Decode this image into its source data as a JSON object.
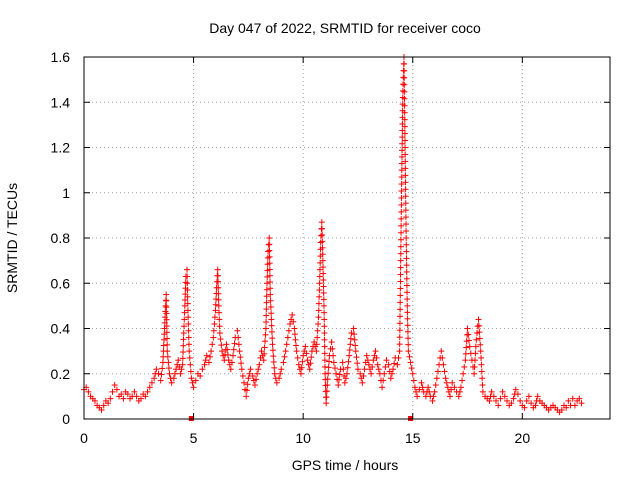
{
  "chart_data": {
    "type": "scatter",
    "title": "Day 047 of 2022, SRMTID for receiver coco",
    "xlabel": "GPS time / hours",
    "ylabel": "SRMTID / TECUs",
    "xlim": [
      0,
      24
    ],
    "ylim": [
      0,
      1.6
    ],
    "x_ticks": [
      0,
      5,
      10,
      15,
      20
    ],
    "x_tick_labels": [
      "0",
      "5",
      "10",
      "15",
      "20"
    ],
    "y_ticks": [
      0,
      0.2,
      0.4,
      0.6,
      0.8,
      1,
      1.2,
      1.4,
      1.6
    ],
    "y_tick_labels": [
      "0",
      "0.2",
      "0.4",
      "0.6",
      "0.8",
      "1",
      "1.2",
      "1.4",
      "1.6"
    ],
    "grid": true,
    "marker": "plus",
    "color": "#ff0000",
    "baseline_markers": [
      4.9,
      14.9
    ],
    "series": [
      {
        "name": "SRMTID",
        "points": [
          [
            0.0,
            0.13
          ],
          [
            0.1,
            0.14
          ],
          [
            0.2,
            0.12
          ],
          [
            0.3,
            0.1
          ],
          [
            0.4,
            0.09
          ],
          [
            0.5,
            0.08
          ],
          [
            0.6,
            0.06
          ],
          [
            0.7,
            0.05
          ],
          [
            0.8,
            0.04
          ],
          [
            0.9,
            0.06
          ],
          [
            1.0,
            0.08
          ],
          [
            1.1,
            0.07
          ],
          [
            1.2,
            0.09
          ],
          [
            1.3,
            0.12
          ],
          [
            1.4,
            0.15
          ],
          [
            1.5,
            0.13
          ],
          [
            1.6,
            0.1
          ],
          [
            1.7,
            0.11
          ],
          [
            1.8,
            0.09
          ],
          [
            1.9,
            0.12
          ],
          [
            2.0,
            0.11
          ],
          [
            2.1,
            0.09
          ],
          [
            2.2,
            0.1
          ],
          [
            2.3,
            0.12
          ],
          [
            2.4,
            0.1
          ],
          [
            2.5,
            0.08
          ],
          [
            2.6,
            0.09
          ],
          [
            2.7,
            0.11
          ],
          [
            2.8,
            0.1
          ],
          [
            2.9,
            0.12
          ],
          [
            3.0,
            0.14
          ],
          [
            3.1,
            0.16
          ],
          [
            3.2,
            0.18
          ],
          [
            3.3,
            0.22
          ],
          [
            3.4,
            0.2
          ],
          [
            3.5,
            0.17
          ],
          [
            3.6,
            0.25
          ],
          [
            3.65,
            0.35
          ],
          [
            3.7,
            0.45
          ],
          [
            3.75,
            0.55
          ],
          [
            3.8,
            0.3
          ],
          [
            3.9,
            0.2
          ],
          [
            4.0,
            0.16
          ],
          [
            4.1,
            0.18
          ],
          [
            4.2,
            0.22
          ],
          [
            4.3,
            0.26
          ],
          [
            4.4,
            0.2
          ],
          [
            4.5,
            0.24
          ],
          [
            4.55,
            0.38
          ],
          [
            4.6,
            0.5
          ],
          [
            4.65,
            0.63
          ],
          [
            4.7,
            0.66
          ],
          [
            4.75,
            0.45
          ],
          [
            4.8,
            0.3
          ],
          [
            4.9,
            0.18
          ],
          [
            5.0,
            0.14
          ],
          [
            5.1,
            0.17
          ],
          [
            5.2,
            0.2
          ],
          [
            5.3,
            0.19
          ],
          [
            5.4,
            0.22
          ],
          [
            5.5,
            0.24
          ],
          [
            5.6,
            0.28
          ],
          [
            5.7,
            0.25
          ],
          [
            5.8,
            0.3
          ],
          [
            5.9,
            0.36
          ],
          [
            6.0,
            0.48
          ],
          [
            6.05,
            0.58
          ],
          [
            6.1,
            0.66
          ],
          [
            6.15,
            0.5
          ],
          [
            6.2,
            0.38
          ],
          [
            6.3,
            0.3
          ],
          [
            6.4,
            0.26
          ],
          [
            6.5,
            0.33
          ],
          [
            6.6,
            0.26
          ],
          [
            6.7,
            0.22
          ],
          [
            6.8,
            0.28
          ],
          [
            6.9,
            0.36
          ],
          [
            7.0,
            0.39
          ],
          [
            7.1,
            0.3
          ],
          [
            7.2,
            0.22
          ],
          [
            7.3,
            0.16
          ],
          [
            7.4,
            0.1
          ],
          [
            7.5,
            0.18
          ],
          [
            7.6,
            0.22
          ],
          [
            7.7,
            0.19
          ],
          [
            7.8,
            0.15
          ],
          [
            7.9,
            0.2
          ],
          [
            8.0,
            0.24
          ],
          [
            8.1,
            0.3
          ],
          [
            8.2,
            0.26
          ],
          [
            8.3,
            0.4
          ],
          [
            8.35,
            0.6
          ],
          [
            8.4,
            0.74
          ],
          [
            8.45,
            0.8
          ],
          [
            8.5,
            0.55
          ],
          [
            8.6,
            0.33
          ],
          [
            8.7,
            0.2
          ],
          [
            8.8,
            0.16
          ],
          [
            8.9,
            0.18
          ],
          [
            9.0,
            0.22
          ],
          [
            9.1,
            0.25
          ],
          [
            9.2,
            0.3
          ],
          [
            9.3,
            0.36
          ],
          [
            9.4,
            0.42
          ],
          [
            9.5,
            0.46
          ],
          [
            9.6,
            0.4
          ],
          [
            9.7,
            0.3
          ],
          [
            9.8,
            0.24
          ],
          [
            9.9,
            0.2
          ],
          [
            10.0,
            0.28
          ],
          [
            10.1,
            0.32
          ],
          [
            10.2,
            0.26
          ],
          [
            10.3,
            0.22
          ],
          [
            10.4,
            0.3
          ],
          [
            10.5,
            0.34
          ],
          [
            10.6,
            0.3
          ],
          [
            10.7,
            0.45
          ],
          [
            10.75,
            0.6
          ],
          [
            10.8,
            0.78
          ],
          [
            10.85,
            0.87
          ],
          [
            10.9,
            0.7
          ],
          [
            10.95,
            0.5
          ],
          [
            11.0,
            0.2
          ],
          [
            11.05,
            0.07
          ],
          [
            11.1,
            0.15
          ],
          [
            11.2,
            0.28
          ],
          [
            11.3,
            0.34
          ],
          [
            11.4,
            0.25
          ],
          [
            11.5,
            0.2
          ],
          [
            11.6,
            0.15
          ],
          [
            11.7,
            0.22
          ],
          [
            11.8,
            0.25
          ],
          [
            11.9,
            0.16
          ],
          [
            12.0,
            0.2
          ],
          [
            12.1,
            0.28
          ],
          [
            12.2,
            0.38
          ],
          [
            12.3,
            0.4
          ],
          [
            12.4,
            0.3
          ],
          [
            12.5,
            0.22
          ],
          [
            12.6,
            0.2
          ],
          [
            12.7,
            0.16
          ],
          [
            12.8,
            0.22
          ],
          [
            12.9,
            0.28
          ],
          [
            13.0,
            0.24
          ],
          [
            13.1,
            0.2
          ],
          [
            13.2,
            0.26
          ],
          [
            13.3,
            0.3
          ],
          [
            13.4,
            0.24
          ],
          [
            13.5,
            0.2
          ],
          [
            13.6,
            0.14
          ],
          [
            13.7,
            0.2
          ],
          [
            13.8,
            0.26
          ],
          [
            13.9,
            0.24
          ],
          [
            14.0,
            0.18
          ],
          [
            14.1,
            0.22
          ],
          [
            14.2,
            0.27
          ],
          [
            14.3,
            0.24
          ],
          [
            14.4,
            0.3
          ],
          [
            14.5,
            1.1
          ],
          [
            14.55,
            1.45
          ],
          [
            14.6,
            1.6
          ],
          [
            14.65,
            1.2
          ],
          [
            14.7,
            0.8
          ],
          [
            14.75,
            0.5
          ],
          [
            14.8,
            0.3
          ],
          [
            14.9,
            0.25
          ],
          [
            15.0,
            0.2
          ],
          [
            15.1,
            0.14
          ],
          [
            15.2,
            0.1
          ],
          [
            15.3,
            0.13
          ],
          [
            15.4,
            0.16
          ],
          [
            15.5,
            0.12
          ],
          [
            15.6,
            0.1
          ],
          [
            15.7,
            0.14
          ],
          [
            15.8,
            0.1
          ],
          [
            15.9,
            0.08
          ],
          [
            16.0,
            0.12
          ],
          [
            16.1,
            0.18
          ],
          [
            16.2,
            0.24
          ],
          [
            16.3,
            0.3
          ],
          [
            16.4,
            0.24
          ],
          [
            16.5,
            0.18
          ],
          [
            16.6,
            0.14
          ],
          [
            16.7,
            0.1
          ],
          [
            16.8,
            0.16
          ],
          [
            16.9,
            0.14
          ],
          [
            17.0,
            0.12
          ],
          [
            17.1,
            0.1
          ],
          [
            17.2,
            0.14
          ],
          [
            17.3,
            0.2
          ],
          [
            17.4,
            0.26
          ],
          [
            17.5,
            0.4
          ],
          [
            17.6,
            0.32
          ],
          [
            17.7,
            0.26
          ],
          [
            17.8,
            0.2
          ],
          [
            17.9,
            0.35
          ],
          [
            18.0,
            0.44
          ],
          [
            18.1,
            0.3
          ],
          [
            18.2,
            0.12
          ],
          [
            18.3,
            0.1
          ],
          [
            18.4,
            0.09
          ],
          [
            18.5,
            0.08
          ],
          [
            18.6,
            0.12
          ],
          [
            18.7,
            0.1
          ],
          [
            18.8,
            0.08
          ],
          [
            18.9,
            0.06
          ],
          [
            19.0,
            0.09
          ],
          [
            19.1,
            0.12
          ],
          [
            19.2,
            0.1
          ],
          [
            19.3,
            0.08
          ],
          [
            19.4,
            0.06
          ],
          [
            19.5,
            0.07
          ],
          [
            19.6,
            0.09
          ],
          [
            19.7,
            0.13
          ],
          [
            19.8,
            0.11
          ],
          [
            19.9,
            0.08
          ],
          [
            20.0,
            0.06
          ],
          [
            20.1,
            0.05
          ],
          [
            20.2,
            0.08
          ],
          [
            20.3,
            0.1
          ],
          [
            20.4,
            0.07
          ],
          [
            20.5,
            0.05
          ],
          [
            20.6,
            0.06
          ],
          [
            20.7,
            0.1
          ],
          [
            20.8,
            0.08
          ],
          [
            20.9,
            0.07
          ],
          [
            21.0,
            0.06
          ],
          [
            21.1,
            0.05
          ],
          [
            21.2,
            0.04
          ],
          [
            21.3,
            0.05
          ],
          [
            21.4,
            0.06
          ],
          [
            21.5,
            0.05
          ],
          [
            21.6,
            0.04
          ],
          [
            21.7,
            0.03
          ],
          [
            21.8,
            0.04
          ],
          [
            21.9,
            0.06
          ],
          [
            22.0,
            0.05
          ],
          [
            22.1,
            0.08
          ],
          [
            22.2,
            0.06
          ],
          [
            22.3,
            0.09
          ],
          [
            22.4,
            0.06
          ],
          [
            22.5,
            0.08
          ],
          [
            22.6,
            0.09
          ],
          [
            22.7,
            0.07
          ]
        ]
      }
    ]
  }
}
